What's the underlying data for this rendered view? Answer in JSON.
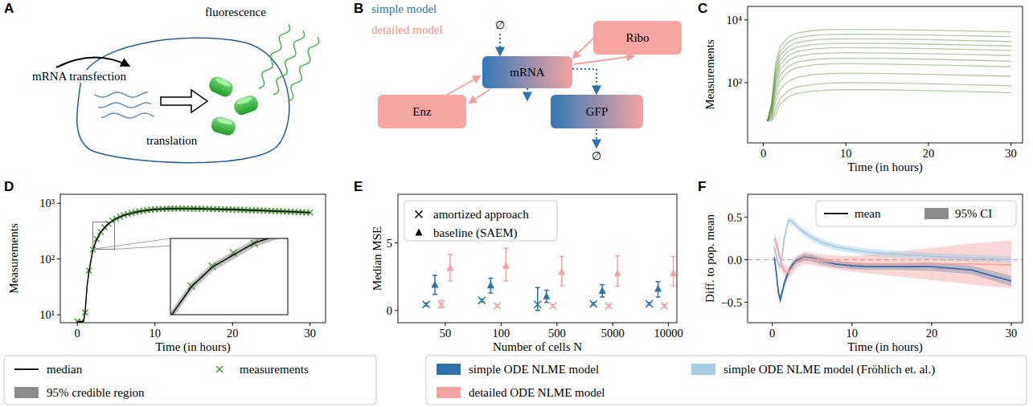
{
  "diagrams": [
    {
      "panel": "A",
      "transfection": "mRNA transfection",
      "translation": "translation",
      "fluorescence": "fluorescence"
    },
    {
      "panel": "B",
      "simple_label": "simple model",
      "detailed_label": "detailed model",
      "nodes": [
        {
          "label": "∅"
        },
        {
          "label": "mRNA"
        },
        {
          "label": "Ribo"
        },
        {
          "label": "Enz"
        },
        {
          "label": "GFP"
        },
        {
          "label": "∅"
        }
      ]
    }
  ],
  "chart_data": [
    {
      "panel": "C",
      "type": "line",
      "xlabel": "Time (in hours)",
      "ylabel": "Measurements",
      "log": "y",
      "color": "#4f8a2c",
      "xlim": [
        -1.9,
        31.4
      ],
      "ylim": [
        1.2,
        27000
      ],
      "xticks": [
        0,
        10,
        20,
        30
      ],
      "yticks": [
        {
          "value": 100,
          "label": "10²"
        },
        {
          "value": 10000,
          "label": "10⁴"
        }
      ],
      "x": [
        0.5,
        1,
        1.5,
        2,
        3,
        4,
        6,
        8,
        10,
        15,
        20,
        25,
        30
      ],
      "series": [
        {
          "values": [
            6,
            6,
            10,
            20,
            35,
            45,
            54,
            58,
            60,
            59,
            56,
            52,
            48
          ]
        },
        {
          "values": [
            6,
            7,
            15,
            30,
            55,
            72,
            88,
            96,
            100,
            98,
            92,
            86,
            80
          ]
        },
        {
          "values": [
            6,
            8,
            25,
            60,
            110,
            145,
            180,
            195,
            200,
            195,
            185,
            172,
            160
          ]
        },
        {
          "values": [
            6,
            9,
            40,
            110,
            220,
            300,
            370,
            395,
            400,
            392,
            370,
            345,
            320
          ]
        },
        {
          "values": [
            6,
            10,
            60,
            170,
            330,
            450,
            550,
            590,
            600,
            590,
            560,
            520,
            480
          ]
        },
        {
          "values": [
            6,
            12,
            90,
            260,
            500,
            680,
            830,
            880,
            900,
            880,
            840,
            790,
            730
          ]
        },
        {
          "values": [
            6,
            14,
            120,
            370,
            720,
            980,
            1200,
            1280,
            1300,
            1280,
            1220,
            1140,
            1060
          ]
        },
        {
          "values": [
            6,
            15,
            160,
            500,
            1000,
            1350,
            1650,
            1760,
            1800,
            1770,
            1690,
            1590,
            1480
          ]
        },
        {
          "values": [
            6,
            18,
            220,
            700,
            1400,
            1900,
            2300,
            2450,
            2500,
            2460,
            2350,
            2200,
            2050
          ]
        },
        {
          "values": [
            6,
            20,
            300,
            950,
            1950,
            2650,
            3200,
            3420,
            3500,
            3440,
            3300,
            3100,
            2900
          ]
        },
        {
          "values": [
            6,
            22,
            420,
            1350,
            2800,
            3800,
            4600,
            4900,
            5000,
            4920,
            4700,
            4420,
            4150
          ]
        }
      ]
    },
    {
      "panel": "D",
      "type": "line",
      "xlabel": "Time (in hours)",
      "ylabel": "Measurements",
      "log": "y",
      "legend": "bottom",
      "xlim": [
        -2.2,
        32
      ],
      "ylim": [
        7.2,
        1450
      ],
      "xticks": [
        0,
        10,
        20,
        30
      ],
      "yticks": [
        {
          "value": 10,
          "label": "10¹"
        },
        {
          "value": 100,
          "label": "10²"
        },
        {
          "value": 1000,
          "label": "10³"
        }
      ],
      "inset": {
        "xlim": [
          2,
          4.8
        ],
        "ylim": [
          150,
          460
        ]
      },
      "series": [
        {
          "name": "median",
          "type": "line",
          "color": "#000000",
          "x": [
            0,
            0.5,
            0.8,
            1,
            1.25,
            1.5,
            2,
            2.5,
            3,
            4,
            5,
            6,
            8,
            10,
            12,
            15,
            20,
            25,
            30
          ],
          "values": [
            7.5,
            7.5,
            7.6,
            11,
            32,
            60,
            146,
            226,
            302,
            430,
            530,
            610,
            715,
            778,
            800,
            800,
            770,
            730,
            680
          ]
        },
        {
          "name": "95% credible region",
          "type": "area",
          "color": "#8c8c8c",
          "x": [
            0,
            0.5,
            0.8,
            1,
            1.25,
            1.5,
            2,
            2.5,
            3,
            4,
            5,
            6,
            8,
            10,
            12,
            15,
            20,
            25,
            30
          ],
          "lower": [
            7.1,
            7.1,
            7.2,
            10.2,
            29.5,
            55.5,
            136,
            211,
            284,
            405,
            500,
            577,
            678,
            739,
            760,
            760,
            731,
            692,
            643
          ],
          "upper": [
            7.9,
            7.9,
            8,
            11.8,
            34.5,
            64.5,
            156,
            241,
            320,
            455,
            560,
            643,
            752,
            817,
            840,
            840,
            809,
            768,
            717
          ]
        },
        {
          "name": "measurements",
          "type": "scatter",
          "marker": "x",
          "color": "#4f9a3a",
          "x": [
            0,
            0.5,
            1,
            1.5,
            2,
            2.5,
            3,
            3.5,
            4,
            4.5,
            5,
            5.5,
            6,
            6.5,
            7,
            7.5,
            8,
            8.5,
            9,
            9.5,
            10,
            10.5,
            11,
            11.5,
            12,
            12.5,
            13,
            13.5,
            14,
            14.5,
            15,
            15.5,
            16,
            16.5,
            17,
            17.5,
            18,
            18.5,
            19,
            19.5,
            20,
            20.5,
            21,
            21.5,
            22,
            22.5,
            23,
            23.5,
            24,
            24.5,
            25,
            25.5,
            26,
            26.5,
            27,
            27.5,
            28,
            28.5,
            29,
            29.5,
            30
          ],
          "values": [
            7.6,
            7.5,
            11,
            62,
            148,
            228,
            305,
            372,
            428,
            488,
            532,
            572,
            612,
            645,
            668,
            697,
            716,
            733,
            752,
            763,
            779,
            787,
            790,
            799,
            801,
            800,
            805,
            802,
            804,
            799,
            801,
            796,
            797,
            791,
            791,
            785,
            785,
            779,
            778,
            772,
            771,
            765,
            763,
            757,
            755,
            749,
            747,
            741,
            739,
            733,
            731,
            724,
            721,
            714,
            711,
            704,
            701,
            694,
            691,
            684,
            681
          ]
        }
      ]
    },
    {
      "panel": "E",
      "type": "scatter",
      "xlabel": "Number of cells N",
      "ylabel": "Median MSE",
      "legend": "upper left",
      "categories": [
        "50",
        "100",
        "500",
        "5000",
        "10000"
      ],
      "ylim": [
        -0.9,
        8.6
      ],
      "yticks": [
        0,
        5
      ],
      "methods": [
        {
          "label": "amortized approach",
          "marker": "x"
        },
        {
          "label": "baseline (SAEM)",
          "marker": "triangle"
        }
      ],
      "models": [
        {
          "color": "#2c72ad",
          "results": [
            {
              "values": [
                0.45,
                0.75,
                0.45,
                0.5,
                0.5
              ],
              "errors_minus": [
                0.1,
                0.1,
                0.45,
                0.1,
                0.1
              ],
              "errors_plus": [
                0.1,
                0.1,
                1.25,
                0.1,
                0.1
              ]
            },
            {
              "values": [
                1.9,
                1.85,
                1.05,
                1.45,
                1.6
              ],
              "errors_minus": [
                0.7,
                0.55,
                0.45,
                0.45,
                0.6
              ],
              "errors_plus": [
                0.7,
                0.55,
                0.45,
                0.45,
                0.55
              ]
            }
          ]
        },
        {
          "color": "#f5a3a0",
          "results": [
            {
              "values": [
                0.45,
                0.35,
                0.35,
                0.35,
                0.35
              ],
              "errors_minus": [
                0.25,
                0.1,
                0.1,
                0.1,
                0.1
              ],
              "errors_plus": [
                0.3,
                0.1,
                0.1,
                0.1,
                0.1
              ]
            },
            {
              "values": [
                3.15,
                3.3,
                2.85,
                2.75,
                2.75
              ],
              "errors_minus": [
                0.95,
                1.1,
                1.0,
                0.95,
                0.9
              ],
              "errors_plus": [
                1.0,
                1.3,
                1.15,
                1.3,
                1.25
              ]
            }
          ]
        }
      ]
    },
    {
      "panel": "F",
      "type": "line",
      "xlabel": "Time (in hours)",
      "ylabel": "Diff. to pop. mean",
      "legend": "upper right",
      "legend_labels": [
        "mean",
        "95% CI"
      ],
      "xlim": [
        -3.1,
        31.4
      ],
      "ylim": [
        -0.74,
        0.77
      ],
      "xticks": [
        0,
        10,
        20,
        30
      ],
      "yticks": [
        {
          "value": -0.5,
          "label": "−0.5"
        },
        {
          "value": 0,
          "label": "0.0"
        },
        {
          "value": 0.5,
          "label": "0.5"
        }
      ],
      "hline": {
        "value": 0,
        "color": "#f08f8a",
        "line_style": "dashed"
      },
      "x": [
        0.25,
        0.5,
        0.75,
        1,
        1.25,
        1.5,
        2,
        2.5,
        3,
        4,
        5,
        6,
        8,
        10,
        12,
        15,
        20,
        25,
        30
      ],
      "series": [
        {
          "name": "simple ODE NLME model",
          "color": "#2c72ad",
          "values": [
            0.03,
            -0.15,
            -0.38,
            -0.47,
            -0.38,
            -0.28,
            -0.15,
            -0.06,
            -0.01,
            0.03,
            0.02,
            -0.01,
            -0.05,
            -0.07,
            -0.08,
            -0.08,
            -0.08,
            -0.12,
            -0.25
          ],
          "lower": [
            -0.02,
            -0.2,
            -0.43,
            -0.52,
            -0.43,
            -0.33,
            -0.19,
            -0.1,
            -0.05,
            -0.01,
            -0.02,
            -0.05,
            -0.09,
            -0.11,
            -0.12,
            -0.12,
            -0.13,
            -0.17,
            -0.31
          ],
          "upper": [
            0.08,
            -0.1,
            -0.33,
            -0.42,
            -0.33,
            -0.23,
            -0.11,
            -0.02,
            0.03,
            0.07,
            0.06,
            0.03,
            -0.01,
            -0.03,
            -0.04,
            -0.04,
            -0.03,
            -0.07,
            -0.19
          ]
        },
        {
          "name": "detailed ODE NLME model",
          "color": "#f5a3a0",
          "values": [
            0.25,
            0.2,
            0.1,
            0.0,
            -0.08,
            -0.13,
            -0.15,
            -0.1,
            -0.03,
            0.02,
            0.01,
            -0.01,
            -0.03,
            -0.05,
            -0.05,
            -0.05,
            -0.05,
            -0.05,
            -0.06
          ],
          "lower": [
            0.18,
            0.13,
            0.03,
            -0.07,
            -0.15,
            -0.2,
            -0.22,
            -0.17,
            -0.1,
            -0.05,
            -0.06,
            -0.08,
            -0.11,
            -0.14,
            -0.16,
            -0.19,
            -0.24,
            -0.29,
            -0.34
          ],
          "upper": [
            0.32,
            0.27,
            0.17,
            0.07,
            -0.01,
            -0.06,
            -0.08,
            -0.03,
            0.04,
            0.09,
            0.08,
            0.06,
            0.05,
            0.04,
            0.06,
            0.09,
            0.14,
            0.19,
            0.23
          ]
        },
        {
          "name": "simple ODE NLME model (Fröhlich et. al.)",
          "color": "#a6cbe3",
          "values": [
            0.15,
            0.05,
            -0.05,
            -0.08,
            0.05,
            0.25,
            0.46,
            0.45,
            0.4,
            0.32,
            0.26,
            0.21,
            0.15,
            0.12,
            0.09,
            0.07,
            0.04,
            0.02,
            0.0
          ],
          "lower": [
            0.11,
            0.01,
            -0.09,
            -0.12,
            0.01,
            0.21,
            0.42,
            0.41,
            0.36,
            0.28,
            0.22,
            0.17,
            0.11,
            0.08,
            0.05,
            0.03,
            0.0,
            -0.02,
            -0.04
          ],
          "upper": [
            0.19,
            0.09,
            -0.01,
            -0.04,
            0.09,
            0.29,
            0.5,
            0.49,
            0.44,
            0.36,
            0.3,
            0.25,
            0.19,
            0.16,
            0.13,
            0.11,
            0.08,
            0.06,
            0.04
          ]
        }
      ]
    }
  ]
}
